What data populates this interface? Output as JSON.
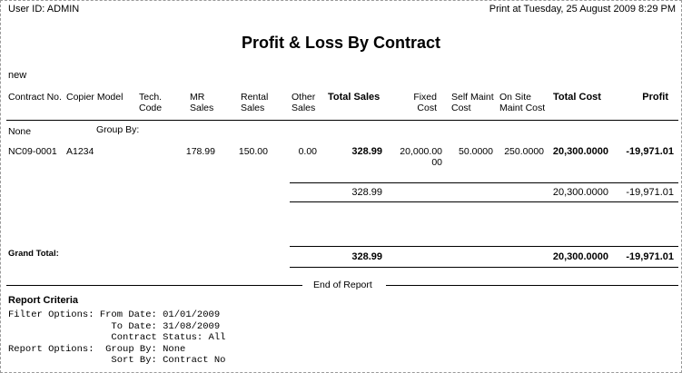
{
  "header": {
    "user_id": "User ID:   ADMIN",
    "print_at": "Print at Tuesday, 25 August 2009 8:29 PM"
  },
  "report": {
    "title": "Profit & Loss By Contract",
    "subtitle": "new"
  },
  "columns": {
    "contract_no": "Contract No.",
    "copier_model": "Copier Model",
    "tech_code": "Tech. Code",
    "mr_sales": "MR Sales",
    "rental_sales": "Rental Sales",
    "other_sales": "Other Sales",
    "total_sales": "Total Sales",
    "fixed_cost": "Fixed Cost",
    "self_maint_cost": "Self Maint Cost",
    "on_site_maint_cost": "On Site Maint Cost",
    "total_cost": "Total Cost",
    "profit": "Profit"
  },
  "group": {
    "name": "None",
    "label": "Group By:"
  },
  "row": {
    "contract_no": "NC09-0001",
    "copier_model": "A1234",
    "mr_sales": "178.99",
    "rental_sales": "150.00",
    "other_sales": "0.00",
    "total_sales": "328.99",
    "fixed_cost": "20,000.0000",
    "self_maint_cost": "50.0000",
    "on_site_maint_cost": "250.0000",
    "total_cost": "20,300.0000",
    "profit": "-19,971.01"
  },
  "subtotal": {
    "total_sales": "328.99",
    "total_cost": "20,300.0000",
    "profit": "-19,971.01"
  },
  "grand_total": {
    "label": "Grand Total:",
    "total_sales": "328.99",
    "total_cost": "20,300.0000",
    "profit": "-19,971.01"
  },
  "end_of_report": "End of Report",
  "criteria": {
    "heading": "Report Criteria",
    "lines": [
      "Filter Options: From Date: 01/01/2009",
      "                  To Date: 31/08/2009",
      "                  Contract Status: All",
      "Report Options:  Group By: None",
      "                  Sort By: Contract No"
    ]
  }
}
